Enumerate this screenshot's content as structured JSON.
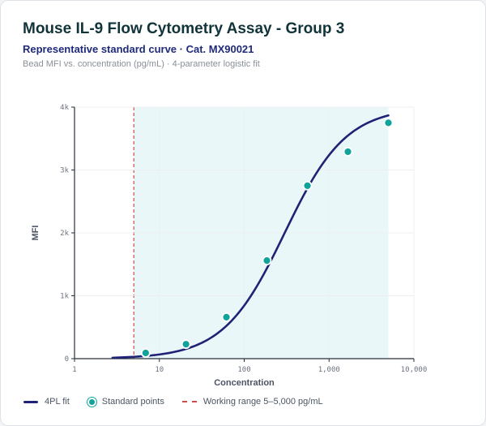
{
  "header": {
    "title": "Mouse IL-9 Flow Cytometry Assay - Group 3",
    "subtitle": "Representative standard curve · Cat. MX90021",
    "caption": "Bead MFI vs. concentration (pg/mL) · 4-parameter logistic fit"
  },
  "colors": {
    "fit_line": "#1f2376",
    "points": "#0fa39c",
    "range_fill": "#eaf7f8",
    "range_line": "#d14b4b",
    "grid": "#eceff2",
    "axis": "#2a2f3a"
  },
  "chart_data": {
    "type": "scatter",
    "xlabel": "Concentration",
    "ylabel": "MFI",
    "xscale": "log",
    "xlim": [
      1,
      10000
    ],
    "ylim": [
      0,
      4000
    ],
    "x_ticks": [
      1,
      10,
      100,
      1000,
      10000
    ],
    "x_tick_labels": [
      "1",
      "10",
      "100",
      "1,000",
      "10,000"
    ],
    "y_ticks": [
      0,
      1000,
      2000,
      3000,
      4000
    ],
    "y_tick_labels": [
      "0",
      "1k",
      "2k",
      "3k",
      "4k"
    ],
    "grid": true,
    "legend_position": "bottom-left",
    "series": [
      {
        "name": "Standard points",
        "x": [
          6.9,
          20.6,
          61.7,
          185,
          556,
          1667,
          5000
        ],
        "y": [
          90,
          230,
          660,
          1560,
          2750,
          3290,
          3750
        ]
      }
    ],
    "fit": {
      "name": "4PL fit",
      "model": "4PL",
      "bottom": 0,
      "top": 4000,
      "ec50": 300,
      "hill": 1.2,
      "x_range": [
        2.8,
        5000
      ]
    },
    "working_range": {
      "min": 5,
      "max": 5000
    },
    "legend": [
      "4PL fit",
      "Standard points",
      "Working range 5–5,000 pg/mL"
    ]
  }
}
